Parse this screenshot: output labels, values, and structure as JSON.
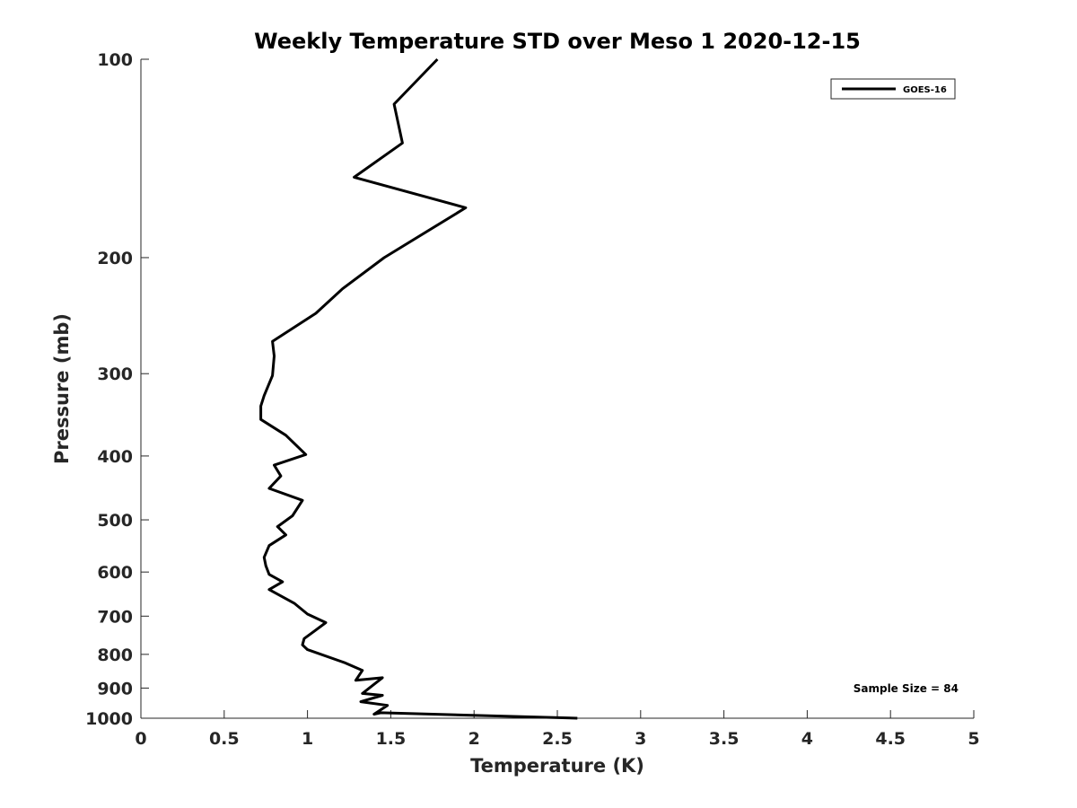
{
  "chart_data": {
    "type": "line",
    "title": "Weekly Temperature STD over Meso 1 2020-12-15",
    "xlabel": "Temperature (K)",
    "ylabel": "Pressure (mb)",
    "xlim": [
      0,
      5
    ],
    "ylim": [
      100,
      1000
    ],
    "y_scale": "log",
    "y_reversed": true,
    "grid": false,
    "legend_position": "top-right",
    "x_ticks": [
      0,
      0.5,
      1,
      1.5,
      2,
      2.5,
      3,
      3.5,
      4,
      4.5,
      5
    ],
    "x_tick_labels": [
      "0",
      "0.5",
      "1",
      "1.5",
      "2",
      "2.5",
      "3",
      "3.5",
      "4",
      "4.5",
      "5"
    ],
    "y_ticks": [
      100,
      200,
      300,
      400,
      500,
      600,
      700,
      800,
      900,
      1000
    ],
    "y_tick_labels": [
      "100",
      "200",
      "300",
      "400",
      "500",
      "600",
      "700",
      "800",
      "900",
      "1000"
    ],
    "annotation": "Sample Size = 84",
    "series": [
      {
        "name": "GOES-16",
        "color": "#000000",
        "x": [
          1.78,
          1.52,
          1.57,
          1.28,
          1.95,
          1.46,
          1.21,
          1.05,
          0.79,
          0.8,
          0.79,
          0.74,
          0.72,
          0.72,
          0.87,
          0.99,
          0.8,
          0.84,
          0.77,
          0.97,
          0.91,
          0.82,
          0.87,
          0.77,
          0.74,
          0.75,
          0.77,
          0.85,
          0.77,
          0.92,
          1.0,
          1.11,
          1.04,
          0.98,
          0.97,
          1.0,
          1.22,
          1.33,
          1.29,
          1.45,
          1.33,
          1.45,
          1.32,
          1.48,
          1.4,
          1.44,
          2.62
        ],
        "y": [
          100,
          117,
          134,
          151,
          168,
          200,
          223,
          243,
          268,
          282,
          302,
          324,
          336,
          352,
          372,
          398,
          413,
          429,
          448,
          467,
          493,
          512,
          527,
          547,
          570,
          587,
          605,
          621,
          638,
          669,
          695,
          716,
          738,
          757,
          774,
          787,
          823,
          846,
          876,
          868,
          917,
          923,
          944,
          956,
          986,
          981,
          1000
        ]
      }
    ]
  }
}
